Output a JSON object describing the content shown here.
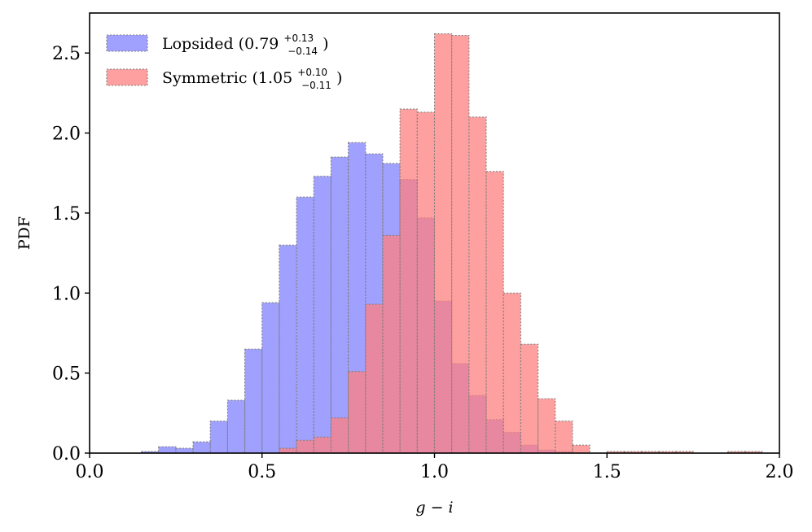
{
  "chart_data": {
    "type": "bar",
    "title": "",
    "xlabel": "g − i",
    "ylabel": "PDF",
    "xlim": [
      0.0,
      2.0
    ],
    "ylim": [
      0.0,
      2.75
    ],
    "xticks": [
      0.0,
      0.5,
      1.0,
      1.5,
      2.0
    ],
    "xtick_labels": [
      "0.0",
      "0.5",
      "1.0",
      "1.5",
      "2.0"
    ],
    "yticks": [
      0.0,
      0.5,
      1.0,
      1.5,
      2.0,
      2.5
    ],
    "ytick_labels": [
      "0.0",
      "0.5",
      "1.0",
      "1.5",
      "2.0",
      "2.5"
    ],
    "grid": false,
    "legend_position": "top-left",
    "bin_width": 0.05,
    "bin_starts": [
      0.0,
      0.05,
      0.1,
      0.15,
      0.2,
      0.25,
      0.3,
      0.35,
      0.4,
      0.45,
      0.5,
      0.55,
      0.6,
      0.65,
      0.7,
      0.75,
      0.8,
      0.85,
      0.9,
      0.95,
      1.0,
      1.05,
      1.1,
      1.15,
      1.2,
      1.25,
      1.3,
      1.35,
      1.4,
      1.45,
      1.5,
      1.55,
      1.6,
      1.65,
      1.7,
      1.75,
      1.8,
      1.85,
      1.9,
      1.95
    ],
    "series": [
      {
        "name": "Lopsided",
        "label_main": "Lopsided (0.79",
        "label_sup": "+0.13",
        "label_sub": "−0.14",
        "label_close": ")",
        "color": "#8080ff",
        "values": [
          0.0,
          0.0,
          0.0,
          0.01,
          0.04,
          0.03,
          0.07,
          0.2,
          0.33,
          0.65,
          0.94,
          1.3,
          1.6,
          1.73,
          1.85,
          1.94,
          1.87,
          1.81,
          1.71,
          1.47,
          0.95,
          0.56,
          0.36,
          0.21,
          0.13,
          0.05,
          0.02,
          0.01,
          0.0,
          0.0,
          0.0,
          0.0,
          0.0,
          0.0,
          0.0,
          0.0,
          0.0,
          0.0,
          0.0,
          0.0
        ]
      },
      {
        "name": "Symmetric",
        "label_main": "Symmetric (1.05",
        "label_sup": "+0.10",
        "label_sub": "−0.11",
        "label_close": ")",
        "color": "#ff8080",
        "values": [
          0.0,
          0.0,
          0.0,
          0.0,
          0.0,
          0.0,
          0.0,
          0.0,
          0.0,
          0.0,
          0.0,
          0.03,
          0.08,
          0.1,
          0.22,
          0.51,
          0.93,
          1.36,
          2.15,
          2.13,
          2.62,
          2.61,
          2.1,
          1.76,
          1.0,
          0.68,
          0.34,
          0.2,
          0.05,
          0.0,
          0.01,
          0.01,
          0.01,
          0.01,
          0.01,
          0.0,
          0.0,
          0.01,
          0.01,
          0.0
        ]
      }
    ]
  }
}
